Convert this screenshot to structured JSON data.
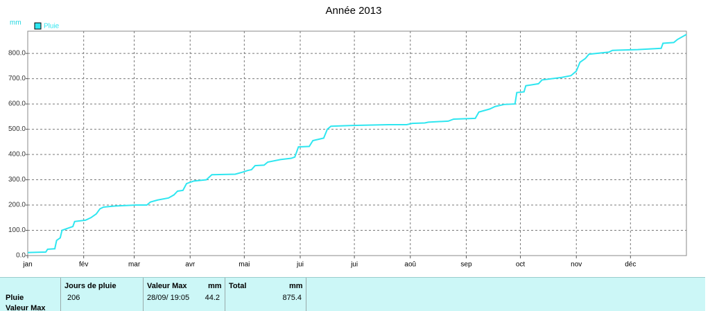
{
  "chart_data": {
    "type": "line",
    "title": "Année 2013",
    "y_label": "mm",
    "xlim": [
      0,
      365
    ],
    "xticks": [
      {
        "value": 0,
        "label": "jan"
      },
      {
        "value": 31,
        "label": "fév"
      },
      {
        "value": 59,
        "label": "mar"
      },
      {
        "value": 90,
        "label": "avr"
      },
      {
        "value": 120,
        "label": "mai"
      },
      {
        "value": 151,
        "label": "jui"
      },
      {
        "value": 181,
        "label": "jui"
      },
      {
        "value": 212,
        "label": "aoû"
      },
      {
        "value": 243,
        "label": "sep"
      },
      {
        "value": 273,
        "label": "oct"
      },
      {
        "value": 304,
        "label": "nov"
      },
      {
        "value": 334,
        "label": "déc"
      }
    ],
    "ylim": [
      0,
      888
    ],
    "yticks": [
      {
        "value": 0,
        "label": "0.0"
      },
      {
        "value": 100,
        "label": "100.0"
      },
      {
        "value": 200,
        "label": "200.0"
      },
      {
        "value": 300,
        "label": "300.0"
      },
      {
        "value": 400,
        "label": "400.0"
      },
      {
        "value": 500,
        "label": "500.0"
      },
      {
        "value": 600,
        "label": "600.0"
      },
      {
        "value": 700,
        "label": "700.0"
      },
      {
        "value": 800,
        "label": "800.0"
      }
    ],
    "grid": true,
    "legend": "top-left",
    "x": [
      0,
      10,
      11,
      15,
      16,
      18,
      19,
      23,
      25,
      26,
      32,
      35,
      38,
      40,
      42,
      48,
      60,
      66,
      68,
      72,
      78,
      81,
      83,
      86,
      88,
      92,
      99,
      102,
      115,
      119,
      122,
      124,
      126,
      131,
      133,
      140,
      146,
      148,
      150,
      156,
      158,
      164,
      166,
      168,
      180,
      200,
      210,
      213,
      220,
      222,
      233,
      236,
      248,
      250,
      256,
      259,
      264,
      270,
      271,
      275,
      276,
      283,
      285,
      296,
      301,
      304,
      306,
      309,
      311,
      322,
      324,
      338,
      351,
      352,
      358,
      360,
      365
    ],
    "series": [
      {
        "name": "Pluie",
        "color": "#2ee6f0",
        "values": [
          12,
          14,
          25,
          27,
          60,
          70,
          100,
          110,
          115,
          135,
          140,
          150,
          165,
          185,
          192,
          196,
          200,
          200,
          212,
          220,
          228,
          240,
          255,
          258,
          285,
          295,
          300,
          320,
          322,
          330,
          337,
          340,
          356,
          358,
          370,
          380,
          385,
          390,
          430,
          432,
          455,
          465,
          500,
          512,
          515,
          518,
          518,
          523,
          525,
          528,
          532,
          540,
          543,
          568,
          580,
          590,
          598,
          600,
          645,
          648,
          672,
          680,
          695,
          705,
          712,
          730,
          765,
          780,
          797,
          805,
          812,
          815,
          820,
          840,
          843,
          855,
          875
        ]
      }
    ]
  },
  "table": {
    "header": [
      "Jours de pluie",
      "Valeur Max",
      "mm",
      "Total",
      "mm"
    ],
    "rows": [
      {
        "label": "Pluie",
        "cells": [
          206,
          "28/09/ 19:05",
          44.2,
          875.4
        ]
      },
      {
        "label": "Valeur Max"
      }
    ]
  }
}
